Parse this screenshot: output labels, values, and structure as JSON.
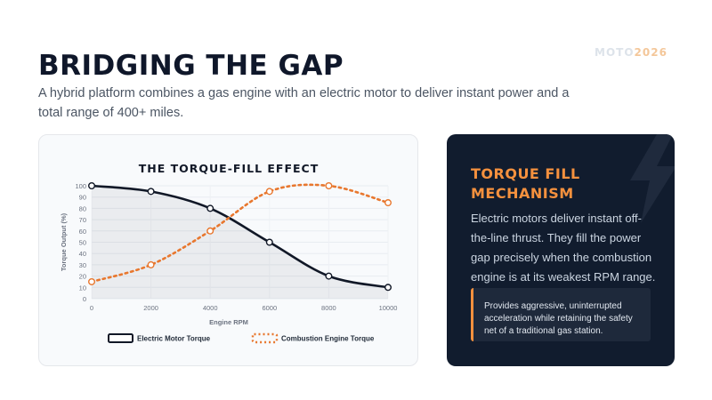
{
  "brand": {
    "part1": "MOTO",
    "part2": "2026",
    "accent": "#f5913e"
  },
  "page": {
    "title": "BRIDGING THE GAP",
    "subtitle": "A hybrid platform combines a gas engine with an electric motor to deliver instant power and a total range of 400+ miles."
  },
  "info": {
    "icon": "lightning-bolt-icon",
    "title": "TORQUE FILL MECHANISM",
    "body": "Electric motors deliver instant off-the-line thrust. They fill the power gap precisely when the combustion engine is at its weakest RPM range.",
    "callout": "Provides aggressive, uninterrupted acceleration while retaining the safety net of a traditional gas station."
  },
  "chart_data": {
    "type": "line",
    "title": "THE TORQUE-FILL EFFECT",
    "xlabel": "Engine RPM",
    "ylabel": "Torque Output (%)",
    "x": [
      0,
      2000,
      4000,
      6000,
      8000,
      10000
    ],
    "xlim": [
      0,
      10000
    ],
    "ylim": [
      0,
      100
    ],
    "xticks": [
      0,
      2000,
      4000,
      6000,
      8000,
      10000
    ],
    "yticks": [
      0,
      10,
      20,
      30,
      40,
      50,
      60,
      70,
      80,
      90,
      100
    ],
    "grid": true,
    "legend_position": "bottom",
    "series": [
      {
        "name": "Electric Motor Torque",
        "values": [
          100,
          95,
          80,
          50,
          20,
          10
        ],
        "color": "#111827",
        "style": "solid",
        "fill": true
      },
      {
        "name": "Combustion Engine Torque",
        "values": [
          15,
          30,
          60,
          95,
          100,
          85
        ],
        "color": "#e8772e",
        "style": "dotted",
        "fill": false
      }
    ]
  }
}
